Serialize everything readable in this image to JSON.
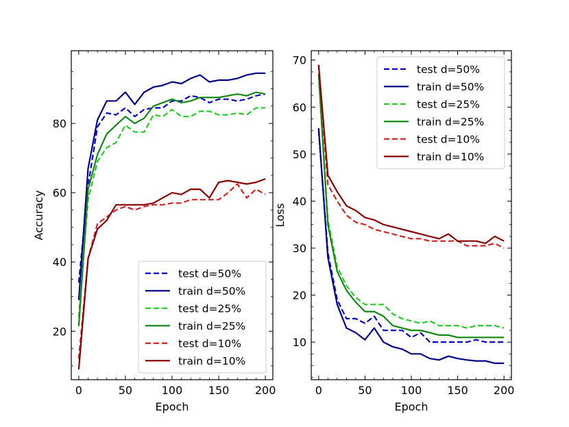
{
  "chart_data": [
    {
      "type": "line",
      "title": "",
      "xlabel": "Epoch",
      "ylabel": "Accuracy",
      "xlim": [
        -8,
        208
      ],
      "ylim": [
        6,
        101
      ],
      "xticks": [
        0,
        50,
        100,
        150,
        200
      ],
      "yticks": [
        20,
        40,
        60,
        80
      ],
      "legend_position": "lower-right",
      "x": [
        0,
        10,
        20,
        30,
        40,
        50,
        60,
        70,
        80,
        90,
        100,
        110,
        120,
        130,
        140,
        150,
        160,
        170,
        180,
        190,
        200
      ],
      "series": [
        {
          "name": "test d=50%",
          "color": "#0000cc",
          "style": "dashed",
          "values": [
            34,
            62,
            79,
            83,
            82.5,
            84.5,
            82,
            84,
            84.5,
            84.5,
            86.5,
            86.5,
            88,
            87.5,
            86,
            87,
            87,
            86.5,
            87,
            88,
            88.5
          ]
        },
        {
          "name": "train d=50%",
          "color": "#00008b",
          "style": "solid",
          "values": [
            29,
            67,
            81,
            86.5,
            86.5,
            89,
            85.5,
            89,
            90.5,
            91,
            92,
            91.5,
            93,
            94,
            92,
            92.5,
            92.5,
            93,
            94,
            94.5,
            94.5
          ]
        },
        {
          "name": "test d=25%",
          "color": "#22cc22",
          "style": "dashed",
          "values": [
            24,
            58,
            69,
            73,
            74.5,
            79.5,
            77.5,
            77.5,
            82.5,
            82,
            84,
            82,
            82,
            83.5,
            83.5,
            82.5,
            82.5,
            83,
            82.5,
            84.5,
            84.5
          ]
        },
        {
          "name": "train d=25%",
          "color": "#118811",
          "style": "solid",
          "values": [
            21.5,
            61,
            71,
            77,
            79.5,
            82,
            80,
            81.5,
            85,
            86,
            87,
            86,
            86.5,
            87.5,
            87.5,
            87.5,
            88,
            88.5,
            88,
            89,
            88.5
          ]
        },
        {
          "name": "test d=10%",
          "color": "#d62020",
          "style": "dashed",
          "values": [
            12,
            41,
            51,
            53,
            55,
            56,
            55,
            56,
            56.5,
            56.5,
            57,
            57,
            58,
            58,
            58,
            58,
            60,
            62.5,
            58.5,
            61,
            59.5
          ]
        },
        {
          "name": "train d=10%",
          "color": "#8b0000",
          "style": "solid",
          "values": [
            9,
            41,
            49.5,
            52,
            56.5,
            56.5,
            56.5,
            56.5,
            57,
            58.5,
            60,
            59.5,
            61,
            61,
            58.5,
            63,
            63.5,
            63,
            62.5,
            63,
            64
          ]
        }
      ]
    },
    {
      "type": "line",
      "title": "",
      "xlabel": "Epoch",
      "ylabel": "Loss",
      "xlim": [
        -8,
        208
      ],
      "ylim": [
        2,
        72
      ],
      "xticks": [
        0,
        50,
        100,
        150,
        200
      ],
      "yticks": [
        10,
        20,
        30,
        40,
        50,
        60,
        70
      ],
      "legend_position": "upper-right",
      "x": [
        0,
        10,
        20,
        30,
        40,
        50,
        60,
        70,
        80,
        90,
        100,
        110,
        120,
        130,
        140,
        150,
        160,
        170,
        180,
        190,
        200
      ],
      "series": [
        {
          "name": "test d=50%",
          "color": "#0000cc",
          "style": "dashed",
          "values": [
            55,
            29,
            19,
            15,
            15,
            14,
            15.5,
            12.5,
            12.5,
            12.5,
            11,
            12,
            10,
            10,
            10,
            10,
            10,
            10.5,
            10,
            10,
            10
          ]
        },
        {
          "name": "train d=50%",
          "color": "#00008b",
          "style": "solid",
          "values": [
            55.5,
            28,
            18,
            13,
            12,
            10.5,
            13,
            10,
            9,
            8.5,
            7.5,
            7.5,
            6.5,
            6.2,
            7,
            6.5,
            6.2,
            6,
            6,
            5.5,
            5.5
          ]
        },
        {
          "name": "test d=25%",
          "color": "#22cc22",
          "style": "dashed",
          "values": [
            67,
            36,
            26,
            22,
            19.5,
            18,
            18,
            18,
            16,
            15,
            14.5,
            14,
            14.5,
            13.5,
            13.5,
            13.5,
            13,
            13.5,
            13.5,
            13.5,
            13
          ]
        },
        {
          "name": "train d=25%",
          "color": "#118811",
          "style": "solid",
          "values": [
            67,
            35,
            25,
            21,
            18.5,
            16.5,
            16.5,
            15.5,
            13.5,
            13,
            12.5,
            12.5,
            12,
            11.5,
            11.5,
            11,
            11,
            11,
            11,
            11,
            11
          ]
        },
        {
          "name": "test d=10%",
          "color": "#d62020",
          "style": "dashed",
          "values": [
            69,
            43.5,
            40,
            37,
            35.5,
            35,
            34,
            33.5,
            33,
            32.5,
            32,
            32,
            31.5,
            31.5,
            31.5,
            31.5,
            30.5,
            30.5,
            30.5,
            31,
            30
          ]
        },
        {
          "name": "train d=10%",
          "color": "#8b0000",
          "style": "solid",
          "values": [
            69,
            45.5,
            42,
            39,
            38,
            36.5,
            36,
            35,
            34.5,
            34,
            33.5,
            33,
            32.5,
            32,
            33,
            31.5,
            31.5,
            31.5,
            31,
            32.5,
            31.5
          ]
        }
      ]
    }
  ]
}
